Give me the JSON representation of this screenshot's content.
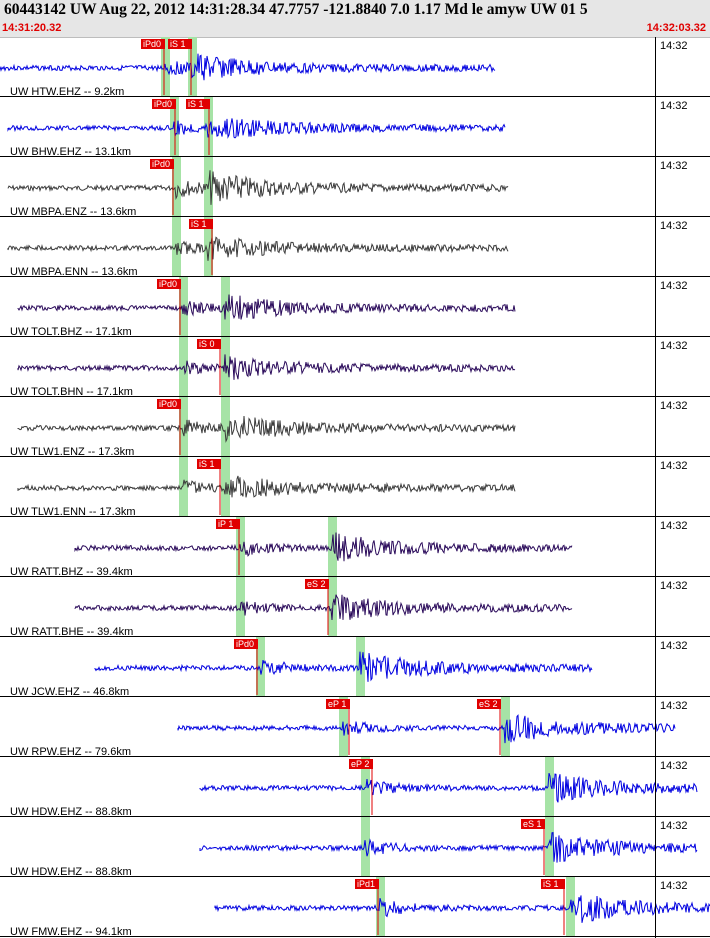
{
  "header": {
    "title": "60443142 UW Aug 22, 2012 14:31:28.34   47.7757 -121.8840  7.0 1.17 Md le amyw UW 01   5",
    "start_time": "14:31:20.32",
    "end_time": "14:32:03.32"
  },
  "colors": {
    "header_bg": "#e6e6e6",
    "time_text": "#e00000",
    "pick_box": "#e00000",
    "pick_window": "#a6e3a6",
    "trace_blue": "#0000e0",
    "trace_dark": "#3a3a3a",
    "trace_purple": "#2a0a5a"
  },
  "traces": [
    {
      "label": "UW HTW.EHZ -- 9.2km",
      "time": "14:32",
      "color": "blue",
      "seed": 3,
      "amp": 0.5,
      "start": 0,
      "end": 495,
      "p": 165,
      "s": 192,
      "picks": [
        {
          "text": "iPd0",
          "x": 141
        },
        {
          "text": "iS 1",
          "x": 168
        }
      ]
    },
    {
      "label": "UW BHW.EHZ -- 13.1km",
      "time": "14:32",
      "color": "blue",
      "seed": 5,
      "amp": 0.45,
      "start": 8,
      "end": 505,
      "p": 174,
      "s": 208,
      "picks": [
        {
          "text": "iPd0",
          "x": 152
        },
        {
          "text": "iS 1",
          "x": 186
        }
      ]
    },
    {
      "label": "UW MBPA.ENZ -- 13.6km",
      "time": "14:32",
      "color": "dark",
      "seed": 7,
      "amp": 0.6,
      "start": 8,
      "end": 508,
      "p": 176,
      "s": 208,
      "picks": [
        {
          "text": "iPd0",
          "x": 150
        }
      ]
    },
    {
      "label": "UW MBPA.ENN -- 13.6km",
      "time": "14:32",
      "color": "dark",
      "seed": 11,
      "amp": 0.4,
      "start": 8,
      "end": 508,
      "p": 176,
      "s": 208,
      "picks": [
        {
          "text": "iS 1",
          "x": 189
        }
      ]
    },
    {
      "label": "UW TOLT.BHZ -- 17.1km",
      "time": "14:32",
      "color": "purple",
      "seed": 13,
      "amp": 0.45,
      "start": 18,
      "end": 515,
      "p": 183,
      "s": 225,
      "picks": [
        {
          "text": "iPd0",
          "x": 157
        }
      ]
    },
    {
      "label": "UW TOLT.BHN -- 17.1km",
      "time": "14:32",
      "color": "purple",
      "seed": 17,
      "amp": 0.4,
      "start": 18,
      "end": 515,
      "p": 183,
      "s": 225,
      "picks": [
        {
          "text": "iS 0",
          "x": 197
        }
      ]
    },
    {
      "label": "UW TLW1.ENZ -- 17.3km",
      "time": "14:32",
      "color": "dark",
      "seed": 19,
      "amp": 0.5,
      "start": 18,
      "end": 515,
      "p": 183,
      "s": 225,
      "picks": [
        {
          "text": "iPd0",
          "x": 157
        }
      ]
    },
    {
      "label": "UW TLW1.ENN -- 17.3km",
      "time": "14:32",
      "color": "dark",
      "seed": 23,
      "amp": 0.45,
      "start": 18,
      "end": 515,
      "p": 183,
      "s": 225,
      "picks": [
        {
          "text": "iS 1",
          "x": 197
        }
      ]
    },
    {
      "label": "UW RATT.BHZ -- 39.4km",
      "time": "14:32",
      "color": "purple",
      "seed": 29,
      "amp": 0.5,
      "start": 75,
      "end": 572,
      "p": 240,
      "s": 332,
      "picks": [
        {
          "text": "iP 1",
          "x": 216
        }
      ]
    },
    {
      "label": "UW RATT.BHE -- 39.4km",
      "time": "14:32",
      "color": "purple",
      "seed": 31,
      "amp": 0.45,
      "start": 75,
      "end": 572,
      "p": 240,
      "s": 332,
      "picks": [
        {
          "text": "eS 2",
          "x": 305
        }
      ]
    },
    {
      "label": "UW JCW.EHZ -- 46.8km",
      "time": "14:32",
      "color": "blue",
      "seed": 37,
      "amp": 0.55,
      "start": 95,
      "end": 592,
      "p": 260,
      "s": 360,
      "picks": [
        {
          "text": "iPd0",
          "x": 234
        }
      ]
    },
    {
      "label": "UW RPW.EHZ -- 79.6km",
      "time": "14:32",
      "color": "blue",
      "seed": 41,
      "amp": 0.5,
      "start": 178,
      "end": 675,
      "p": 343,
      "s": 505,
      "picks": [
        {
          "text": "eP 1",
          "x": 326
        },
        {
          "text": "eS 2",
          "x": 477
        }
      ]
    },
    {
      "label": "UW HDW.EHZ -- 88.8km",
      "time": "14:32",
      "color": "blue",
      "seed": 43,
      "amp": 0.5,
      "start": 200,
      "end": 697,
      "p": 365,
      "s": 549,
      "picks": [
        {
          "text": "eP 2",
          "x": 349
        }
      ]
    },
    {
      "label": "UW HDW.EHZ -- 88.8km",
      "time": "14:32",
      "color": "blue",
      "seed": 47,
      "amp": 0.5,
      "start": 200,
      "end": 697,
      "p": 365,
      "s": 549,
      "picks": [
        {
          "text": "eS 1",
          "x": 521
        }
      ]
    },
    {
      "label": "UW FMW.EHZ -- 94.1km",
      "time": "14:32",
      "color": "blue",
      "seed": 53,
      "amp": 0.55,
      "start": 215,
      "end": 710,
      "p": 380,
      "s": 570,
      "picks": [
        {
          "text": "iPd1",
          "x": 355
        },
        {
          "text": "iS 1",
          "x": 541
        }
      ]
    }
  ]
}
